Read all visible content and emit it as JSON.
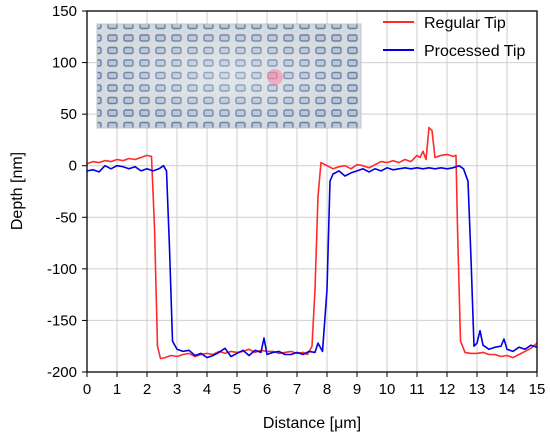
{
  "chart_data": {
    "type": "line",
    "xlabel": "Distance [μm]",
    "ylabel": "Depth [nm]",
    "xlim": [
      0,
      15
    ],
    "ylim": [
      -200,
      150
    ],
    "xticks": [
      "0",
      "1",
      "2",
      "3",
      "4",
      "5",
      "6",
      "7",
      "8",
      "9",
      "10",
      "11",
      "12",
      "13",
      "14",
      "15"
    ],
    "yticks": [
      "-200",
      "-150",
      "-100",
      "-50",
      "0",
      "50",
      "100",
      "150"
    ],
    "grid": true,
    "legend_position": "top-right",
    "inset": "optical microscope image of a periodic rectangular pit array",
    "series": [
      {
        "name": "Regular Tip",
        "color": "#ff2a2a",
        "points": [
          [
            0.0,
            2
          ],
          [
            0.2,
            4
          ],
          [
            0.4,
            3
          ],
          [
            0.6,
            5
          ],
          [
            0.8,
            4
          ],
          [
            1.0,
            6
          ],
          [
            1.2,
            5
          ],
          [
            1.4,
            7
          ],
          [
            1.6,
            6
          ],
          [
            1.8,
            8
          ],
          [
            2.0,
            10
          ],
          [
            2.15,
            9
          ],
          [
            2.25,
            -60
          ],
          [
            2.35,
            -175
          ],
          [
            2.45,
            -187
          ],
          [
            2.6,
            -186
          ],
          [
            2.8,
            -184
          ],
          [
            3.0,
            -185
          ],
          [
            3.2,
            -183
          ],
          [
            3.4,
            -182
          ],
          [
            3.6,
            -185
          ],
          [
            3.8,
            -183
          ],
          [
            4.0,
            -182
          ],
          [
            4.2,
            -183
          ],
          [
            4.4,
            -180
          ],
          [
            4.6,
            -182
          ],
          [
            4.8,
            -180
          ],
          [
            5.0,
            -181
          ],
          [
            5.2,
            -180
          ],
          [
            5.4,
            -178
          ],
          [
            5.6,
            -181
          ],
          [
            5.8,
            -179
          ],
          [
            6.0,
            -180
          ],
          [
            6.2,
            -180
          ],
          [
            6.4,
            -182
          ],
          [
            6.6,
            -181
          ],
          [
            6.8,
            -180
          ],
          [
            7.0,
            -182
          ],
          [
            7.2,
            -181
          ],
          [
            7.35,
            -183
          ],
          [
            7.5,
            -175
          ],
          [
            7.6,
            -120
          ],
          [
            7.7,
            -30
          ],
          [
            7.8,
            3
          ],
          [
            8.0,
            0
          ],
          [
            8.2,
            -3
          ],
          [
            8.4,
            -1
          ],
          [
            8.6,
            0
          ],
          [
            8.8,
            -3
          ],
          [
            9.0,
            1
          ],
          [
            9.2,
            0
          ],
          [
            9.4,
            -2
          ],
          [
            9.6,
            1
          ],
          [
            9.8,
            4
          ],
          [
            10.0,
            3
          ],
          [
            10.2,
            5
          ],
          [
            10.4,
            3
          ],
          [
            10.6,
            6
          ],
          [
            10.8,
            4
          ],
          [
            11.0,
            10
          ],
          [
            11.1,
            8
          ],
          [
            11.2,
            14
          ],
          [
            11.3,
            6
          ],
          [
            11.4,
            37
          ],
          [
            11.5,
            34
          ],
          [
            11.6,
            8
          ],
          [
            11.8,
            10
          ],
          [
            12.0,
            11
          ],
          [
            12.2,
            9
          ],
          [
            12.3,
            10
          ],
          [
            12.35,
            -60
          ],
          [
            12.45,
            -170
          ],
          [
            12.6,
            -181
          ],
          [
            12.8,
            -182
          ],
          [
            13.0,
            -182
          ],
          [
            13.2,
            -181
          ],
          [
            13.4,
            -183
          ],
          [
            13.6,
            -183
          ],
          [
            13.8,
            -185
          ],
          [
            14.0,
            -184
          ],
          [
            14.2,
            -186
          ],
          [
            14.4,
            -183
          ],
          [
            14.6,
            -180
          ],
          [
            14.8,
            -177
          ],
          [
            15.0,
            -172
          ]
        ]
      },
      {
        "name": "Processed Tip",
        "color": "#0000e0",
        "points": [
          [
            0.0,
            -5
          ],
          [
            0.2,
            -4
          ],
          [
            0.4,
            -6
          ],
          [
            0.6,
            0
          ],
          [
            0.8,
            -3
          ],
          [
            1.0,
            0
          ],
          [
            1.2,
            -1
          ],
          [
            1.4,
            -3
          ],
          [
            1.6,
            -1
          ],
          [
            1.8,
            -5
          ],
          [
            2.0,
            -3
          ],
          [
            2.2,
            -5
          ],
          [
            2.4,
            -3
          ],
          [
            2.55,
            0
          ],
          [
            2.65,
            -5
          ],
          [
            2.75,
            -80
          ],
          [
            2.85,
            -170
          ],
          [
            3.0,
            -178
          ],
          [
            3.2,
            -180
          ],
          [
            3.4,
            -179
          ],
          [
            3.6,
            -184
          ],
          [
            3.8,
            -182
          ],
          [
            4.0,
            -186
          ],
          [
            4.2,
            -184
          ],
          [
            4.4,
            -181
          ],
          [
            4.6,
            -177
          ],
          [
            4.8,
            -185
          ],
          [
            5.0,
            -182
          ],
          [
            5.2,
            -179
          ],
          [
            5.4,
            -184
          ],
          [
            5.6,
            -179
          ],
          [
            5.8,
            -181
          ],
          [
            5.9,
            -167
          ],
          [
            6.0,
            -183
          ],
          [
            6.2,
            -181
          ],
          [
            6.4,
            -180
          ],
          [
            6.6,
            -183
          ],
          [
            6.8,
            -183
          ],
          [
            7.0,
            -181
          ],
          [
            7.2,
            -183
          ],
          [
            7.4,
            -180
          ],
          [
            7.6,
            -181
          ],
          [
            7.7,
            -172
          ],
          [
            7.85,
            -180
          ],
          [
            8.0,
            -120
          ],
          [
            8.1,
            -15
          ],
          [
            8.2,
            -8
          ],
          [
            8.4,
            -5
          ],
          [
            8.6,
            -10
          ],
          [
            8.8,
            -7
          ],
          [
            9.0,
            -5
          ],
          [
            9.2,
            -3
          ],
          [
            9.4,
            -6
          ],
          [
            9.6,
            -3
          ],
          [
            9.8,
            -5
          ],
          [
            10.0,
            -2
          ],
          [
            10.2,
            -4
          ],
          [
            10.4,
            -3
          ],
          [
            10.6,
            -2
          ],
          [
            10.8,
            -3
          ],
          [
            11.0,
            -2
          ],
          [
            11.2,
            -3
          ],
          [
            11.4,
            -2
          ],
          [
            11.6,
            -3
          ],
          [
            11.8,
            -2
          ],
          [
            12.0,
            -3
          ],
          [
            12.2,
            -2
          ],
          [
            12.4,
            0
          ],
          [
            12.55,
            -3
          ],
          [
            12.7,
            -15
          ],
          [
            12.8,
            -90
          ],
          [
            12.9,
            -175
          ],
          [
            13.0,
            -172
          ],
          [
            13.1,
            -160
          ],
          [
            13.2,
            -174
          ],
          [
            13.4,
            -178
          ],
          [
            13.6,
            -176
          ],
          [
            13.8,
            -175
          ],
          [
            13.9,
            -168
          ],
          [
            14.0,
            -178
          ],
          [
            14.2,
            -180
          ],
          [
            14.4,
            -176
          ],
          [
            14.6,
            -178
          ],
          [
            14.8,
            -174
          ],
          [
            15.0,
            -176
          ]
        ]
      }
    ]
  }
}
